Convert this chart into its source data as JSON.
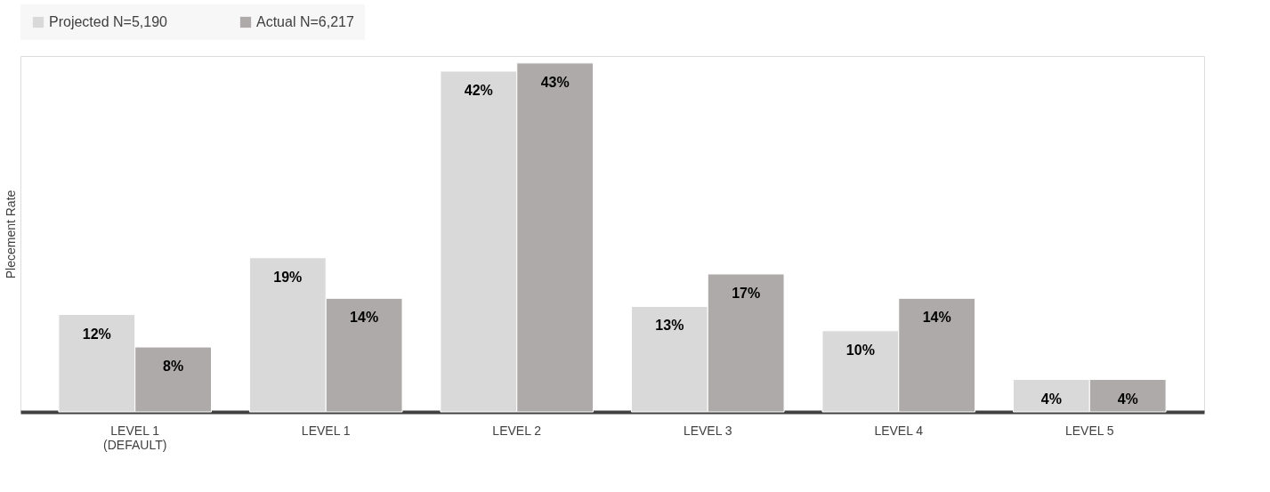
{
  "chart_data": {
    "type": "bar",
    "ylabel": "Plecement Rate",
    "categories": [
      "LEVEL 1\n(DEFAULT)",
      "LEVEL 1",
      "LEVEL 2",
      "LEVEL 3",
      "LEVEL 4",
      "LEVEL 5"
    ],
    "series": [
      {
        "name": "Projected N=5,190",
        "color": "#d9d9d9",
        "values": [
          12,
          19,
          42,
          13,
          10,
          4
        ],
        "value_labels": [
          "12%",
          "19%",
          "42%",
          "13%",
          "10%",
          "4%"
        ]
      },
      {
        "name": "Actual N=6,217",
        "color": "#aeaaaa",
        "values": [
          8,
          14,
          43,
          17,
          14,
          4
        ],
        "value_labels": [
          "8%",
          "14%",
          "43%",
          "17%",
          "14%",
          "4%"
        ]
      }
    ],
    "legend": "top",
    "grid": false
  }
}
